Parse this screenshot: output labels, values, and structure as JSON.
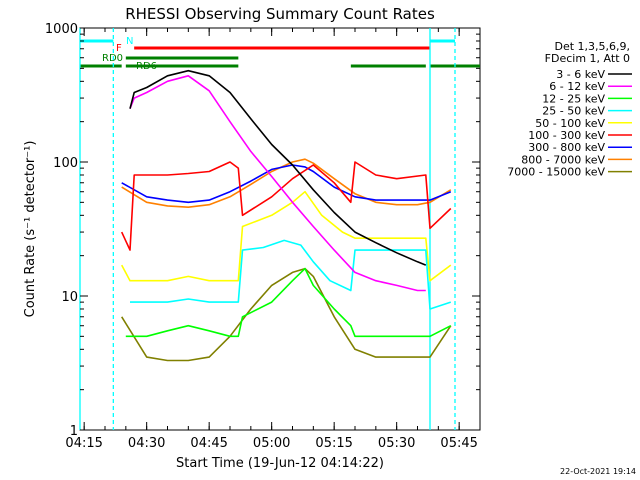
{
  "chart_data": {
    "type": "line",
    "title": "RHESSI Observing Summary Count Rates",
    "xlabel": "Start Time (19-Jun-12 04:14:22)",
    "ylabel": "Count Rate (s⁻¹ detector⁻¹)",
    "y_scale": "log",
    "ylim": [
      1,
      1000
    ],
    "xlim": [
      "04:14",
      "05:50"
    ],
    "x_ticks": [
      "04:15",
      "04:30",
      "04:45",
      "05:00",
      "05:15",
      "05:30",
      "05:45"
    ],
    "y_ticks": [
      {
        "value": 1,
        "label": "1"
      },
      {
        "value": 10,
        "label": "10"
      },
      {
        "value": 100,
        "label": "100"
      },
      {
        "value": 1000,
        "label": "1000"
      }
    ],
    "legend_header": [
      "Det 1,3,5,6,9,",
      "FDecim 1, Att 0"
    ],
    "legend_position": "right",
    "series": [
      {
        "name": "3 - 6 keV",
        "color": "#000000",
        "x": [
          "04:26",
          "04:27",
          "04:30",
          "04:35",
          "04:40",
          "04:45",
          "04:50",
          "04:55",
          "05:00",
          "05:05",
          "05:10",
          "05:15",
          "05:20",
          "05:25",
          "05:30",
          "05:35",
          "05:37"
        ],
        "values": [
          250,
          330,
          360,
          440,
          480,
          440,
          330,
          210,
          135,
          95,
          62,
          42,
          30,
          25,
          21,
          18,
          17
        ]
      },
      {
        "name": "6 - 12 keV",
        "color": "#ff00ff",
        "x": [
          "04:26",
          "04:27",
          "04:30",
          "04:35",
          "04:40",
          "04:45",
          "04:50",
          "04:55",
          "05:00",
          "05:05",
          "05:10",
          "05:15",
          "05:20",
          "05:25",
          "05:30",
          "05:35",
          "05:37"
        ],
        "values": [
          250,
          300,
          330,
          400,
          440,
          340,
          200,
          120,
          78,
          50,
          33,
          22,
          15,
          13,
          12,
          11,
          11
        ]
      },
      {
        "name": "12 - 25 keV",
        "color": "#00ff00",
        "x": [
          "04:25",
          "04:30",
          "04:35",
          "04:40",
          "04:45",
          "04:50",
          "04:52",
          "04:53",
          "05:00",
          "05:05",
          "05:08",
          "05:10",
          "05:15",
          "05:19",
          "05:20",
          "05:25",
          "05:30",
          "05:37",
          "05:38",
          "05:43"
        ],
        "values": [
          5,
          5,
          5.5,
          6,
          5.5,
          5,
          5,
          7,
          9,
          13,
          16,
          12,
          8,
          6,
          5,
          5,
          5,
          5,
          5,
          6
        ]
      },
      {
        "name": "25 - 50 keV",
        "color": "#00ffff",
        "x": [
          "04:26",
          "04:30",
          "04:35",
          "04:40",
          "04:45",
          "04:50",
          "04:52",
          "04:53",
          "04:58",
          "05:03",
          "05:07",
          "05:10",
          "05:14",
          "05:19",
          "05:20",
          "05:25",
          "05:30",
          "05:37",
          "05:38",
          "05:43"
        ],
        "values": [
          9,
          9,
          9,
          9.5,
          9,
          9,
          9,
          22,
          23,
          26,
          24,
          18,
          13,
          11,
          22,
          22,
          22,
          22,
          8,
          9
        ]
      },
      {
        "name": "50 - 100 keV",
        "color": "#ffff00",
        "x": [
          "04:24",
          "04:26",
          "04:30",
          "04:35",
          "04:40",
          "04:45",
          "04:50",
          "04:52",
          "04:53",
          "05:00",
          "05:05",
          "05:08",
          "05:12",
          "05:17",
          "05:19",
          "05:20",
          "05:25",
          "05:30",
          "05:37",
          "05:38",
          "05:43"
        ],
        "values": [
          17,
          13,
          13,
          13,
          14,
          13,
          13,
          13,
          33,
          40,
          50,
          60,
          40,
          30,
          28,
          27,
          27,
          27,
          27,
          13,
          17
        ]
      },
      {
        "name": "100 - 300 keV",
        "color": "#ff0000",
        "x": [
          "04:24",
          "04:26",
          "04:27",
          "04:30",
          "04:35",
          "04:40",
          "04:45",
          "04:50",
          "04:52",
          "04:53",
          "05:00",
          "05:05",
          "05:10",
          "05:15",
          "05:19",
          "05:20",
          "05:25",
          "05:30",
          "05:37",
          "05:38",
          "05:43"
        ],
        "values": [
          30,
          22,
          80,
          80,
          80,
          82,
          85,
          100,
          90,
          40,
          55,
          75,
          95,
          70,
          50,
          100,
          80,
          75,
          80,
          32,
          45
        ]
      },
      {
        "name": "300 - 800 keV",
        "color": "#0000ff",
        "x": [
          "04:24",
          "04:30",
          "04:35",
          "04:40",
          "04:45",
          "04:50",
          "04:55",
          "05:00",
          "05:05",
          "05:08",
          "05:10",
          "05:15",
          "05:20",
          "05:25",
          "05:30",
          "05:35",
          "05:38",
          "05:43"
        ],
        "values": [
          70,
          55,
          52,
          50,
          52,
          60,
          72,
          88,
          95,
          92,
          85,
          65,
          55,
          52,
          52,
          52,
          52,
          60
        ]
      },
      {
        "name": "800 - 7000 keV",
        "color": "#ff8000",
        "x": [
          "04:24",
          "04:30",
          "04:35",
          "04:40",
          "04:45",
          "04:50",
          "04:55",
          "05:00",
          "05:05",
          "05:08",
          "05:10",
          "05:15",
          "05:20",
          "05:25",
          "05:30",
          "05:35",
          "05:38",
          "05:43"
        ],
        "values": [
          65,
          50,
          47,
          46,
          48,
          55,
          68,
          85,
          100,
          105,
          98,
          75,
          58,
          50,
          48,
          48,
          50,
          62
        ]
      },
      {
        "name": "7000 - 15000 keV",
        "color": "#808000",
        "x": [
          "04:24",
          "04:30",
          "04:35",
          "04:40",
          "04:45",
          "04:50",
          "04:55",
          "05:00",
          "05:05",
          "05:08",
          "05:10",
          "05:15",
          "05:20",
          "05:25",
          "05:30",
          "05:35",
          "05:38",
          "05:43"
        ],
        "values": [
          7,
          3.5,
          3.3,
          3.3,
          3.5,
          5,
          8,
          12,
          15,
          16,
          14,
          7,
          4,
          3.5,
          3.5,
          3.5,
          3.5,
          6
        ]
      }
    ],
    "flag_bars": [
      {
        "label": "N",
        "color": "#00ffff",
        "segments": [
          [
            "04:14",
            "04:22"
          ],
          [
            "05:38",
            "05:44"
          ]
        ]
      },
      {
        "label": "F",
        "color": "#ff0000",
        "segments": [
          [
            "04:27",
            "05:38"
          ]
        ]
      },
      {
        "label": "RD0",
        "color": "#008000",
        "segments": [
          [
            "04:14",
            "04:24"
          ],
          [
            "04:25",
            "04:52"
          ],
          [
            "05:19",
            "05:37"
          ],
          [
            "05:38",
            "05:50"
          ]
        ]
      },
      {
        "label": "RD6",
        "color": "#008000",
        "segments": [
          [
            "04:25",
            "04:52"
          ]
        ]
      }
    ],
    "vlines": [
      {
        "color": "#00ffff",
        "style": "solid",
        "x": [
          "04:14",
          "05:38"
        ]
      },
      {
        "color": "#00ffff",
        "style": "dashed",
        "x": [
          "04:22",
          "05:44"
        ]
      }
    ],
    "footer_stamp": "22-Oct-2021 19:14"
  }
}
